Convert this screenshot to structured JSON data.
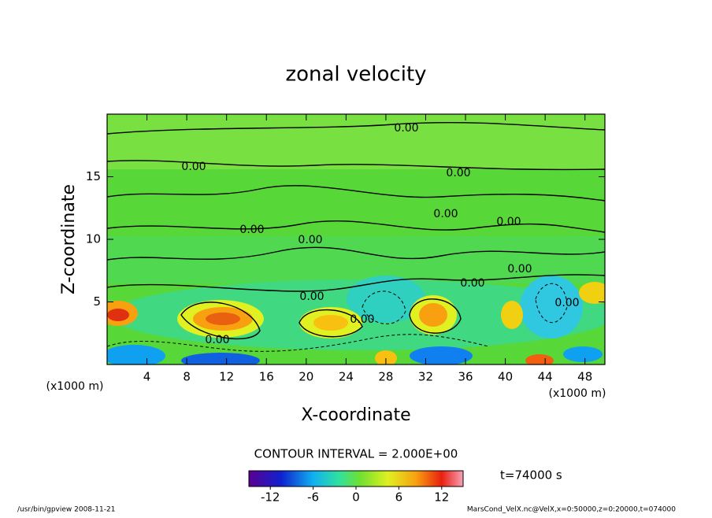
{
  "chart_data": {
    "type": "contour",
    "title": "zonal velocity",
    "xlabel": "X-coordinate",
    "ylabel": "Z-coordinate",
    "x_unit": "(x1000 m)",
    "y_unit": "(x1000 m)",
    "xlim": [
      0,
      50
    ],
    "xticks": [
      4,
      8,
      12,
      16,
      20,
      24,
      28,
      32,
      36,
      40,
      44,
      48
    ],
    "ylim": [
      0,
      20
    ],
    "yticks": [
      5,
      10,
      15
    ],
    "contour_labels": [
      "0.00",
      "0.00",
      "0.00",
      "0.00",
      "0.00",
      "0.00",
      "0.00",
      "0.00",
      "0.00",
      "0.00",
      "0.00",
      "0.00",
      "0.00"
    ],
    "contour_interval": "CONTOUR INTERVAL = 2.000E+00",
    "colorbar": {
      "clim": [
        -15,
        15
      ],
      "ticks": [
        -12,
        -6,
        0,
        6,
        12
      ]
    },
    "time_label": "t=74000 s",
    "footer_left": "/usr/bin/gpview  2008-11-21",
    "footer_right": "MarsCond_VelX.nc@VelX,x=0:50000,z=0:20000,t=074000"
  }
}
